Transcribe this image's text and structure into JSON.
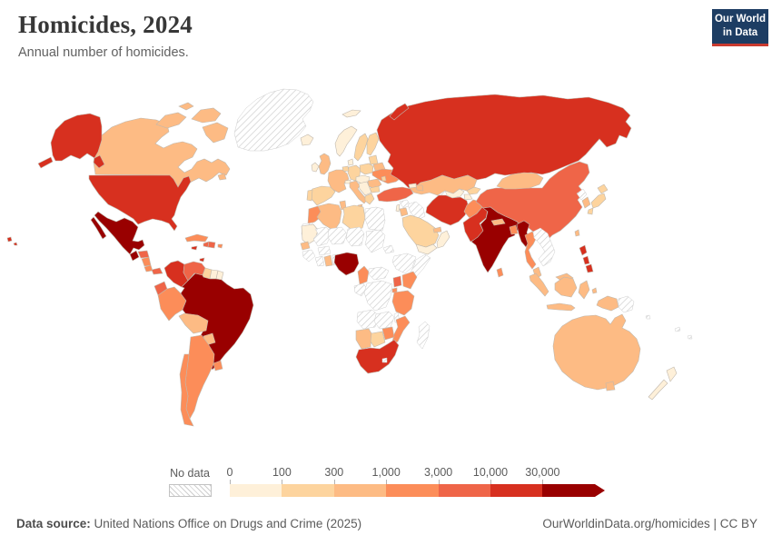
{
  "header": {
    "title": "Homicides, 2024",
    "subtitle": "Annual number of homicides."
  },
  "logo": {
    "line1": "Our World",
    "line2": "in Data",
    "bg": "#1d3d63",
    "accent": "#c93a2f"
  },
  "legend": {
    "no_data_label": "No data",
    "ticks": [
      "0",
      "100",
      "300",
      "1,000",
      "3,000",
      "10,000",
      "30,000"
    ],
    "bins": [
      {
        "range": "0-100",
        "color": "#fef0d9"
      },
      {
        "range": "100-300",
        "color": "#fdd49e"
      },
      {
        "range": "300-1,000",
        "color": "#fdbb84"
      },
      {
        "range": "1,000-3,000",
        "color": "#fc8d59"
      },
      {
        "range": "3,000-10,000",
        "color": "#ef6548"
      },
      {
        "range": "10,000-30,000",
        "color": "#d7301f"
      },
      {
        "range": "30,000+",
        "color": "#990000"
      }
    ]
  },
  "footer": {
    "source_label": "Data source:",
    "source_text": " United Nations Office on Drugs and Crime (2025)",
    "attribution": "OurWorldinData.org/homicides | CC BY"
  },
  "chart_data": {
    "type": "choropleth",
    "title": "Homicides, 2024",
    "metric": "Annual number of homicides",
    "year": 2024,
    "legend_bins": [
      "0-100",
      "100-300",
      "300-1,000",
      "1,000-3,000",
      "3,000-10,000",
      "10,000-30,000",
      "30,000+"
    ],
    "no_data_key": "nd",
    "countries": {
      "usa": 5,
      "canada": 2,
      "mexico": 6,
      "greenland": "nd",
      "guatemala": 6,
      "honduras": 4,
      "nicaragua": 3,
      "costa-rica": 3,
      "panama": 4,
      "cuba": 3,
      "jamaica": 5,
      "haiti": 4,
      "dominican-republic": 4,
      "puerto-rico": 3,
      "trinidad-tobago": 5,
      "colombia": 5,
      "venezuela": 4,
      "guyana": 1,
      "suriname": 0,
      "french-guiana": 0,
      "ecuador": 4,
      "peru": 3,
      "brazil": 6,
      "bolivia": 2,
      "paraguay": 2,
      "uruguay": 3,
      "argentina": 3,
      "chile": 3,
      "iceland": 0,
      "norway": 0,
      "svalbard": 0,
      "sweden": 1,
      "finland": 1,
      "denmark": 0,
      "united-kingdom": 2,
      "ireland": 0,
      "germany": 1,
      "benelux": 1,
      "france": 2,
      "spain": 1,
      "portugal": 1,
      "italy": 2,
      "switzerland": 0,
      "central-europe": 0,
      "poland": 1,
      "baltics": 1,
      "belarus": 2,
      "ukraine": 3,
      "moldova": 1,
      "romania": 2,
      "bulgaria": 1,
      "balkans": 0,
      "greece": 1,
      "russia": 5,
      "turkey": 4,
      "georgia": 0,
      "azerbaijan": 2,
      "syria": "nd",
      "lebanon-israel": 0,
      "jordan": 2,
      "iraq": "nd",
      "saudi-arabia": 1,
      "yemen": 0,
      "oman": 0,
      "uae": 2,
      "iran": 5,
      "kazakhstan": 2,
      "uzbekistan": 0,
      "turkmenistan": "nd",
      "kyrgyzstan": 1,
      "tajikistan": 0,
      "afghanistan": 3,
      "pakistan": 5,
      "india": 6,
      "nepal": 2,
      "bangladesh": 3,
      "sri-lanka": 3,
      "myanmar": 6,
      "thailand": 3,
      "indochina": "nd",
      "malaysia": 2,
      "china": 4,
      "mongolia": 2,
      "north-korea": "nd",
      "south-korea": 2,
      "japan": 1,
      "taiwan": 2,
      "philippines": 5,
      "indonesia": 2,
      "west-papua": 2,
      "papua-new-guinea": "nd",
      "solomon-islands": "nd",
      "new-caledonia": "nd",
      "fiji": "nd",
      "australia": 2,
      "new-zealand": 0,
      "morocco": 3,
      "western-sahara": "nd",
      "algeria": 2,
      "tunisia": 2,
      "libya": 1,
      "egypt": "nd",
      "mauritania": 0,
      "mali": "nd",
      "niger": "nd",
      "chad": "nd",
      "sudan": "nd",
      "eritrea": "nd",
      "senegal": 2,
      "guinea-region": "nd",
      "ivory-coast": "nd",
      "ghana": 2,
      "togo-benin": "nd",
      "burkina-faso": "nd",
      "nigeria": 6,
      "cameroon": 3,
      "central-african-republic": "nd",
      "ethiopia": "nd",
      "somalia": "nd",
      "gabon-congo": "nd",
      "drc": "nd",
      "uganda": 4,
      "kenya": 3,
      "rwanda-burundi": 3,
      "tanzania": 3,
      "angola": "nd",
      "zambia": "nd",
      "malawi": "nd",
      "mozambique": 3,
      "zimbabwe": 3,
      "namibia": 2,
      "botswana": 1,
      "south-africa": 5,
      "lesotho": "nd",
      "madagascar": "nd"
    }
  }
}
